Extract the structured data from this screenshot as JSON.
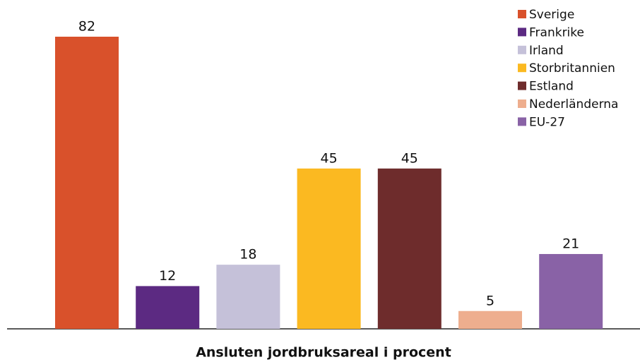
{
  "chart_data": {
    "type": "bar",
    "x_label": "Ansluten jordbruksareal i procent",
    "categories": [
      "Sverige",
      "Frankrike",
      "Irland",
      "Storbritannien",
      "Estland",
      "Nederländerna",
      "EU-27"
    ],
    "values": [
      82,
      12,
      18,
      45,
      45,
      5,
      21
    ],
    "colors": [
      "#d9512b",
      "#5c2a82",
      "#c5c1d9",
      "#fbb921",
      "#6e2c2c",
      "#eeae8e",
      "#8962a6"
    ],
    "legend": "top-right"
  }
}
